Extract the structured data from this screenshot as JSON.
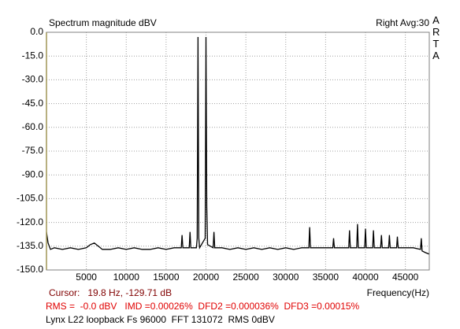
{
  "chart_data": {
    "type": "line",
    "title": "Spectrum magnitude dBV",
    "channel_label": "Right Avg:30",
    "brand": "ARTA",
    "xlabel": "Frequency(Hz)",
    "cursor_text": "Cursor:   19.8 Hz, -129.71 dB",
    "stats_text": "RMS =  -0.0 dBV   IMD =0.00026%  DFD2 =0.000036%  DFD3 =0.00015%",
    "info_text": "Lynx L22 loopback Fs 96000  FFT 131072  RMS 0dBV",
    "color": "#000000",
    "grid": true,
    "xlim": [
      0,
      48000
    ],
    "ylim": [
      -150,
      0
    ],
    "xticks": [
      5000,
      10000,
      15000,
      20000,
      25000,
      30000,
      35000,
      40000,
      45000
    ],
    "yticks": [
      {
        "value": 0,
        "label": "0.0"
      },
      {
        "value": -15,
        "label": "-15.0"
      },
      {
        "value": -30,
        "label": "-30.0"
      },
      {
        "value": -45,
        "label": "-45.0"
      },
      {
        "value": -60,
        "label": "-60.0"
      },
      {
        "value": -75,
        "label": "-75.0"
      },
      {
        "value": -90,
        "label": "-90.0"
      },
      {
        "value": -105,
        "label": "-105.0"
      },
      {
        "value": -120,
        "label": "-120.0"
      },
      {
        "value": -135,
        "label": "-135.0"
      },
      {
        "value": -150,
        "label": "-150.0"
      }
    ],
    "x": [
      0,
      200,
      500,
      1000,
      2000,
      3000,
      4000,
      5000,
      5500,
      6000,
      6500,
      7000,
      8000,
      9000,
      10000,
      11000,
      12000,
      13000,
      14000,
      15000,
      16000,
      16900,
      17000,
      17100,
      17500,
      17900,
      18000,
      18100,
      18800,
      18900,
      19000,
      19100,
      19200,
      19900,
      20000,
      20100,
      20200,
      20900,
      21000,
      21100,
      22000,
      23000,
      24000,
      25000,
      26000,
      27000,
      28000,
      29000,
      30000,
      31000,
      32000,
      32900,
      33000,
      33100,
      34000,
      35000,
      35900,
      36000,
      36100,
      37000,
      37900,
      38000,
      38100,
      38900,
      39000,
      39100,
      39900,
      40000,
      40100,
      40900,
      41000,
      41100,
      41900,
      42000,
      42100,
      42900,
      43000,
      43100,
      43900,
      44000,
      44100,
      45000,
      46000,
      46900,
      47000,
      47100,
      47500,
      48000
    ],
    "values": [
      -126,
      -133,
      -137,
      -136,
      -137,
      -136,
      -137,
      -136,
      -134,
      -133,
      -135,
      -137,
      -137,
      -136,
      -137,
      -136,
      -137,
      -137,
      -136,
      -137,
      -136,
      -136,
      -128,
      -136,
      -136,
      -136,
      -126,
      -136,
      -136,
      -130,
      -3,
      -130,
      -136,
      -130,
      -3,
      -110,
      -134,
      -136,
      -126,
      -136,
      -136,
      -137,
      -136,
      -137,
      -136,
      -137,
      -136,
      -137,
      -136,
      -137,
      -136,
      -136,
      -123,
      -136,
      -136,
      -136,
      -136,
      -130,
      -136,
      -136,
      -136,
      -125,
      -136,
      -136,
      -121,
      -136,
      -136,
      -124,
      -136,
      -136,
      -125,
      -136,
      -136,
      -128,
      -136,
      -136,
      -128,
      -136,
      -136,
      -129,
      -136,
      -136,
      -136,
      -137,
      -130,
      -138,
      -139,
      -140
    ]
  }
}
